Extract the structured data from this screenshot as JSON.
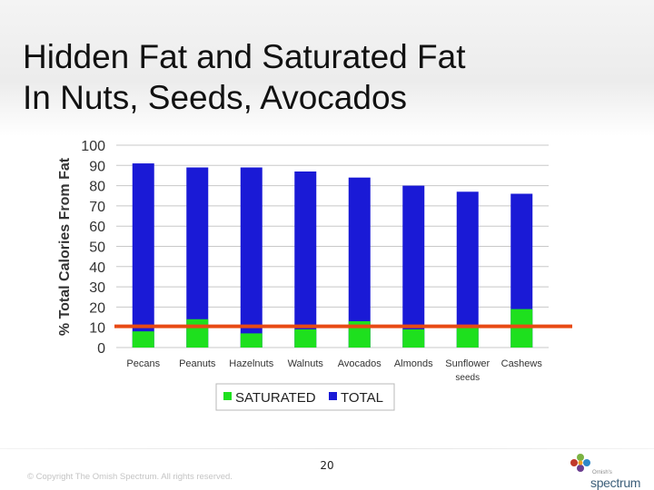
{
  "slide": {
    "title_line1": "Hidden Fat and Saturated Fat",
    "title_line2": "In Nuts, Seeds, Avocados",
    "page_number": "20",
    "copyright": "© Copyright The Omish Spectrum. All rights reserved.",
    "logo_small_text": "Ornish's",
    "logo_text": "spectrum"
  },
  "colors": {
    "saturated": "#1ee01e",
    "total": "#1a1ad6",
    "reference_line": "#e84a14",
    "grid": "#c8c8c8"
  },
  "chart_data": {
    "type": "bar",
    "title": "",
    "xlabel": "",
    "ylabel": "% Total Calories From Fat",
    "ylim": [
      0,
      100
    ],
    "yticks": [
      0,
      10,
      20,
      30,
      40,
      50,
      60,
      70,
      80,
      90,
      100
    ],
    "categories": [
      "Pecans",
      "Peanuts",
      "Hazelnuts",
      "Walnuts",
      "Avocados",
      "Almonds",
      "Sunflower seeds",
      "Cashews"
    ],
    "category_lines": [
      [
        "Pecans"
      ],
      [
        "Peanuts"
      ],
      [
        "Hazelnuts"
      ],
      [
        "Walnuts"
      ],
      [
        "Avocados"
      ],
      [
        "Almonds"
      ],
      [
        "Sunflower",
        "seeds"
      ],
      [
        "Cashews"
      ]
    ],
    "series": [
      {
        "name": "SATURATED",
        "values": [
          8,
          14,
          7,
          9,
          13,
          9,
          11,
          19
        ]
      },
      {
        "name": "TOTAL",
        "values": [
          91,
          89,
          89,
          87,
          84,
          80,
          77,
          76
        ]
      }
    ],
    "reference_line_value": 10.5,
    "legend_position": "bottom",
    "grid": true
  }
}
